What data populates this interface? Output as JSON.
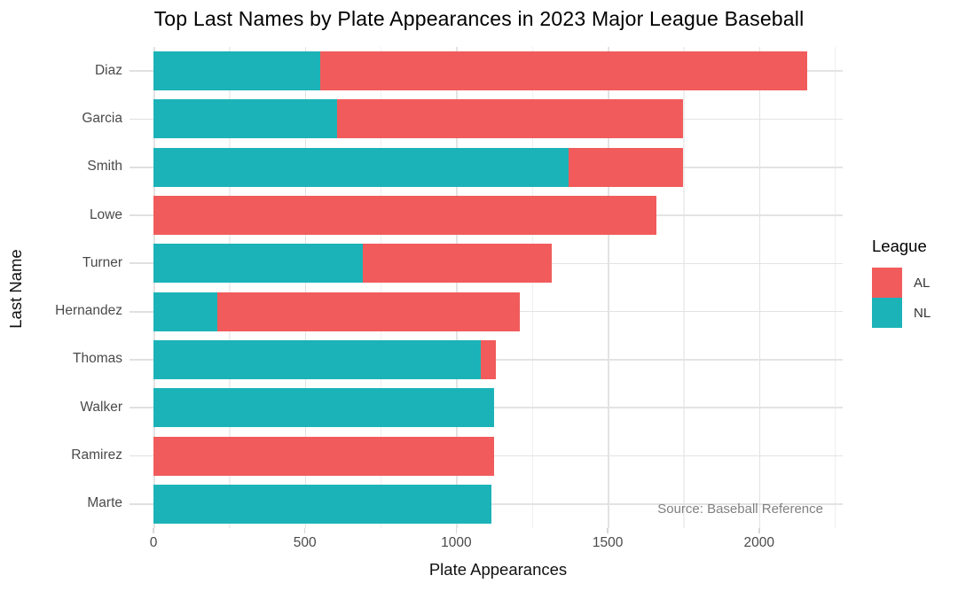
{
  "title": "Top Last Names by Plate Appearances in 2023 Major League Baseball",
  "source_note": "Source: Baseball Reference",
  "legend": {
    "title": "League",
    "entries": [
      {
        "label": "AL",
        "color": "#f15b5b"
      },
      {
        "label": "NL",
        "color": "#1cb3b8"
      }
    ]
  },
  "colors": {
    "al": "#f15b5b",
    "nl": "#1cb3b8",
    "grid_major": "#e3e3e3",
    "grid_minor": "#efefef",
    "tick_text": "#4a4a4a",
    "source_text": "#808080"
  },
  "chart_data": {
    "type": "bar",
    "orientation": "horizontal",
    "stacked": true,
    "title": "Top Last Names by Plate Appearances in 2023 Major League Baseball",
    "xlabel": "Plate Appearances",
    "ylabel": "Last Name",
    "categories": [
      "Diaz",
      "Garcia",
      "Smith",
      "Lowe",
      "Turner",
      "Hernandez",
      "Thomas",
      "Walker",
      "Ramirez",
      "Marte"
    ],
    "series": [
      {
        "name": "NL",
        "color": "#1cb3b8",
        "values": [
          550,
          605,
          1370,
          0,
          690,
          210,
          1080,
          1125,
          0,
          1115
        ]
      },
      {
        "name": "AL",
        "color": "#f15b5b",
        "values": [
          1610,
          1145,
          380,
          1660,
          625,
          1000,
          50,
          0,
          1125,
          0
        ]
      }
    ],
    "totals": [
      2160,
      1750,
      1750,
      1660,
      1315,
      1210,
      1130,
      1125,
      1125,
      1115
    ],
    "x_ticks": [
      0,
      500,
      1000,
      1500,
      2000
    ],
    "x_tick_labels": [
      "0",
      "500",
      "1000",
      "1500",
      "2000"
    ],
    "x_minor_ticks": [
      250,
      750,
      1250,
      1750,
      2250
    ],
    "xlim": [
      0,
      2276
    ],
    "grid": true,
    "legend_position": "right",
    "legend_title": "League",
    "annotations": [
      "Source: Baseball Reference"
    ]
  }
}
